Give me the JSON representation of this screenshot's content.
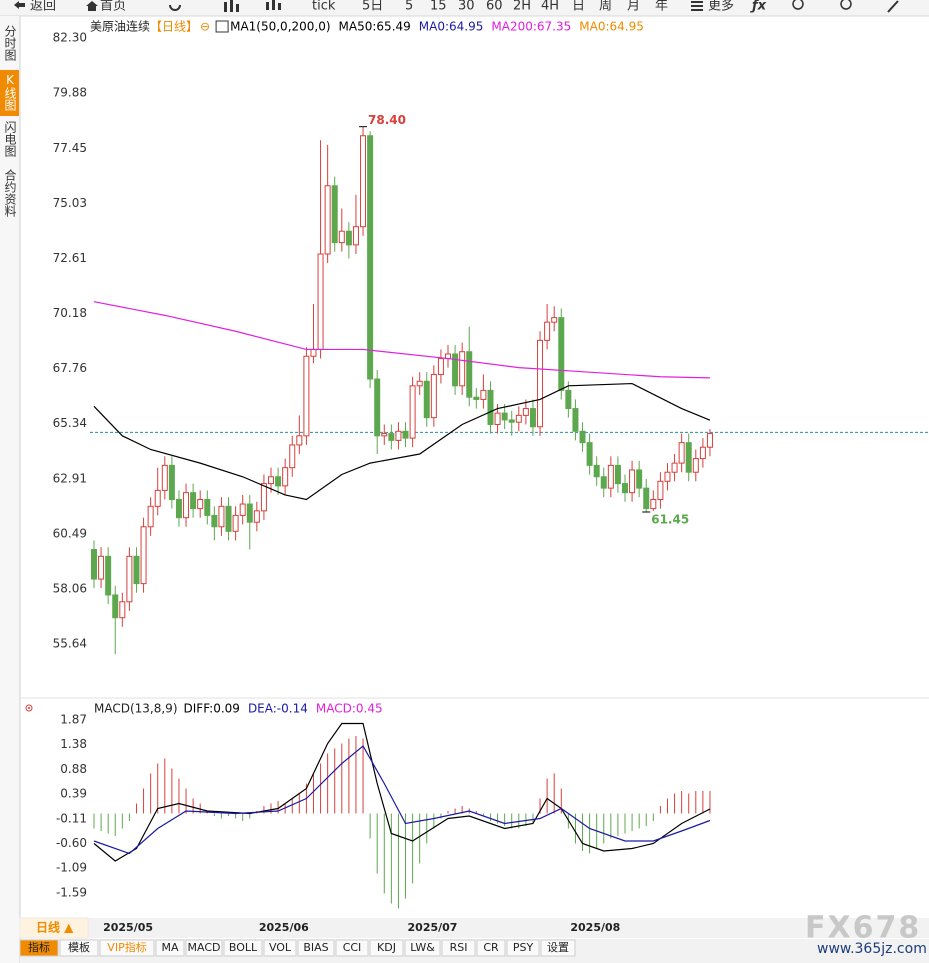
{
  "toolbar": [
    "返回",
    "首页",
    "tick",
    "5日",
    "5",
    "15",
    "30",
    "60",
    "2H",
    "4H",
    "日",
    "周",
    "月",
    "年",
    "更多"
  ],
  "sidebar": [
    "分时图",
    "K线图",
    "闪电图",
    "合约资料"
  ],
  "sidebar_active": 1,
  "period_button": "日线 ▲",
  "tabs": [
    "指标",
    "模板",
    "VIP指标",
    "MA",
    "MACD",
    "BOLL",
    "VOL",
    "BIAS",
    "CCI",
    "KDJ",
    "LW&",
    "RSI",
    "CR",
    "PSY",
    "设置"
  ],
  "tabs_active": 0,
  "watermark": {
    "brand": "FX678",
    "site": "www.365jz.com"
  },
  "chart_data": [
    {
      "type": "candlestick",
      "title": "美原油连续",
      "period": "【日线】",
      "period_icon": "⊖",
      "legend": [
        {
          "text": "MA1(50,0,200,0)",
          "color": "#000000"
        },
        {
          "text": "MA50:65.49",
          "color": "#000000"
        },
        {
          "text": "MA0:64.95",
          "color": "#1a1aa6"
        },
        {
          "text": "MA200:67.35",
          "color": "#e020e0"
        },
        {
          "text": "MA0:64.95",
          "color": "#f08a00"
        }
      ],
      "ylim": [
        53.62,
        82.74
      ],
      "yticks": [
        {
          "value": 82.3,
          "label": "82.30"
        },
        79.88,
        77.45,
        75.03,
        72.61,
        70.18,
        67.76,
        65.34,
        62.91,
        60.49,
        58.06,
        55.64
      ],
      "up_color": "#d7403c",
      "down_color": "#5da84f",
      "open": [
        59.8,
        58.5,
        59.5,
        57.8,
        56.8,
        57.5,
        59.5,
        58.3,
        60.8,
        61.7,
        62.4,
        63.5,
        62.0,
        61.2,
        62.3,
        61.6,
        62.0,
        61.3,
        60.8,
        61.7,
        60.6,
        61.3,
        61.8,
        61.0,
        61.5,
        62.7,
        63.0,
        62.6,
        63.4,
        64.4,
        64.8,
        68.3,
        68.6,
        72.8,
        75.8,
        73.3,
        73.8,
        73.2,
        74.0,
        78.0,
        67.3,
        64.8,
        64.9,
        64.6,
        65.0,
        64.7,
        67.0,
        67.2,
        65.6,
        67.5,
        68.2,
        68.4,
        67.0,
        68.5,
        66.5,
        66.4,
        66.8,
        65.3,
        65.8,
        65.5,
        65.4,
        65.7,
        66.0,
        65.2,
        69.0,
        69.8,
        70.0,
        66.8,
        66.0,
        65.0,
        64.5,
        63.5,
        63.0,
        62.5,
        63.5,
        62.7,
        62.3,
        63.3,
        62.5,
        61.6,
        62.0,
        62.8,
        63.2,
        63.6,
        64.5,
        63.2,
        63.8,
        64.3
      ],
      "high": [
        60.2,
        59.9,
        59.9,
        58.2,
        57.9,
        59.9,
        59.9,
        61.2,
        62.1,
        63.4,
        63.9,
        63.9,
        62.4,
        62.7,
        62.7,
        62.4,
        62.4,
        61.7,
        62.1,
        62.1,
        61.7,
        62.2,
        62.2,
        61.9,
        63.1,
        63.4,
        63.4,
        63.8,
        64.8,
        65.7,
        68.7,
        70.6,
        77.8,
        77.6,
        76.2,
        74.8,
        74.2,
        75.4,
        78.4,
        78.2,
        67.7,
        65.3,
        65.3,
        65.4,
        65.4,
        67.4,
        67.6,
        67.6,
        67.9,
        68.6,
        68.8,
        68.8,
        68.9,
        69.6,
        66.9,
        67.5,
        67.2,
        66.2,
        66.2,
        65.9,
        66.1,
        66.4,
        66.4,
        69.4,
        70.6,
        70.5,
        70.4,
        67.2,
        66.4,
        65.4,
        64.9,
        63.9,
        63.4,
        63.9,
        63.9,
        63.1,
        63.7,
        63.7,
        62.9,
        62.4,
        63.2,
        63.6,
        64.0,
        64.9,
        64.9,
        64.2,
        64.7,
        65.1
      ],
      "low": [
        58.1,
        58.1,
        57.4,
        55.2,
        56.4,
        57.1,
        57.9,
        57.9,
        60.4,
        61.3,
        62.0,
        61.6,
        60.8,
        60.8,
        61.2,
        61.2,
        60.9,
        60.2,
        60.4,
        60.2,
        60.2,
        60.9,
        59.8,
        60.6,
        61.1,
        62.3,
        62.2,
        62.2,
        63.0,
        64.0,
        64.4,
        68.0,
        68.2,
        72.4,
        72.9,
        72.9,
        72.6,
        72.8,
        73.6,
        66.9,
        64.0,
        64.4,
        64.2,
        64.2,
        64.3,
        64.3,
        66.6,
        65.2,
        65.2,
        67.1,
        67.8,
        66.6,
        66.6,
        66.1,
        66.0,
        66.0,
        64.9,
        64.9,
        65.1,
        64.8,
        65.0,
        65.3,
        64.8,
        64.8,
        68.6,
        69.4,
        66.4,
        65.6,
        64.6,
        64.1,
        63.1,
        62.6,
        62.1,
        62.1,
        62.3,
        61.9,
        61.9,
        62.1,
        61.45,
        61.5,
        61.6,
        62.4,
        62.8,
        63.2,
        62.8,
        62.8,
        63.4,
        63.9
      ],
      "close": [
        58.5,
        59.5,
        57.8,
        56.8,
        57.5,
        59.5,
        58.3,
        60.8,
        61.7,
        62.4,
        63.5,
        62.0,
        61.2,
        62.3,
        61.6,
        62.0,
        61.3,
        60.8,
        61.7,
        60.6,
        61.3,
        61.8,
        61.0,
        61.5,
        62.7,
        63.0,
        62.6,
        63.4,
        64.4,
        64.8,
        68.3,
        68.6,
        72.8,
        75.8,
        73.3,
        73.8,
        73.2,
        74.0,
        78.0,
        67.3,
        64.8,
        64.9,
        64.6,
        65.0,
        64.7,
        67.0,
        67.2,
        65.6,
        67.5,
        68.2,
        68.4,
        67.0,
        68.5,
        66.5,
        66.4,
        66.8,
        65.3,
        65.8,
        65.5,
        65.4,
        65.7,
        66.0,
        65.2,
        69.0,
        69.8,
        70.0,
        66.8,
        66.0,
        65.0,
        64.5,
        63.5,
        63.0,
        62.5,
        63.5,
        62.7,
        62.3,
        63.3,
        62.5,
        61.6,
        62.0,
        62.8,
        63.2,
        63.6,
        64.5,
        63.2,
        63.8,
        64.3,
        64.9
      ],
      "lines": [
        {
          "color": "#000000",
          "idx": [
            0,
            4,
            8,
            15,
            21,
            27,
            30,
            35,
            39,
            46,
            52,
            57,
            63,
            67,
            76,
            83,
            87
          ],
          "values": [
            66.1,
            64.8,
            64.2,
            63.6,
            63.0,
            62.2,
            62.0,
            63.1,
            63.6,
            64.0,
            65.3,
            66.0,
            66.4,
            67.0,
            67.1,
            66.0,
            65.49
          ]
        },
        {
          "color": "#e020e0",
          "idx": [
            0,
            10,
            20,
            30,
            38,
            50,
            60,
            70,
            80,
            87
          ],
          "values": [
            70.7,
            70.1,
            69.4,
            68.6,
            68.6,
            68.2,
            67.8,
            67.6,
            67.4,
            67.35
          ]
        }
      ],
      "current": 64.95,
      "current_color": "#2a8f9a",
      "annotations": [
        {
          "label": "78.40",
          "index": 38,
          "value": 78.4,
          "color": "#d7403c"
        },
        {
          "label": "61.45",
          "index": 78,
          "value": 61.45,
          "color": "#5da84f"
        }
      ],
      "x_labels": [
        {
          "index": 1,
          "label": "2025/05"
        },
        {
          "index": 23,
          "label": "2025/06"
        },
        {
          "index": 44,
          "label": "2025/07"
        },
        {
          "index": 67,
          "label": "2025/08"
        }
      ]
    },
    {
      "type": "macd",
      "title": "MACD(13,8,9)",
      "legend": [
        {
          "text": "DIFF:0.09",
          "color": "#000000"
        },
        {
          "text": "DEA:-0.14",
          "color": "#1a1aa6"
        },
        {
          "text": "MACD:0.45",
          "color": "#e020e0"
        }
      ],
      "ylim": [
        -2.03,
        2.27
      ],
      "yticks": [
        1.87,
        1.38,
        0.88,
        0.39,
        -0.11,
        {
          "value": -0.6,
          "label": "-0.60"
        },
        -1.09,
        -1.59
      ],
      "histogram": [
        -0.3,
        -0.35,
        -0.4,
        -0.45,
        -0.3,
        -0.15,
        0.2,
        0.5,
        0.8,
        1.0,
        1.1,
        0.9,
        0.7,
        0.5,
        0.3,
        0.2,
        0.05,
        -0.05,
        -0.1,
        -0.05,
        -0.1,
        -0.15,
        -0.1,
        0.05,
        0.15,
        0.2,
        0.25,
        0.2,
        0.3,
        0.4,
        0.6,
        0.8,
        1.0,
        1.2,
        1.3,
        1.4,
        1.5,
        1.55,
        1.5,
        -0.5,
        -1.2,
        -1.6,
        -1.8,
        -1.9,
        -1.7,
        -1.4,
        -1.0,
        -0.6,
        -0.3,
        -0.1,
        0.05,
        0.1,
        0.15,
        0.1,
        0.05,
        -0.05,
        -0.15,
        -0.2,
        -0.25,
        -0.3,
        -0.3,
        -0.25,
        -0.2,
        0.3,
        0.7,
        0.8,
        0.5,
        -0.3,
        -0.6,
        -0.75,
        -0.8,
        -0.7,
        -0.6,
        -0.5,
        -0.45,
        -0.4,
        -0.35,
        -0.3,
        -0.25,
        -0.15,
        0.15,
        0.3,
        0.4,
        0.45,
        0.4,
        0.45,
        0.45,
        0.45
      ],
      "up_color": "#d7403c",
      "down_color": "#5da84f",
      "lines": [
        {
          "color": "#000000",
          "idx": [
            0,
            3,
            6,
            9,
            12,
            16,
            22,
            26,
            30,
            33,
            35,
            38,
            40,
            42,
            45,
            50,
            53,
            58,
            62,
            64,
            66,
            69,
            72,
            76,
            79,
            83,
            87
          ],
          "values": [
            -0.6,
            -0.95,
            -0.7,
            0.1,
            0.2,
            0.05,
            0.0,
            0.1,
            0.5,
            1.4,
            1.8,
            1.8,
            0.6,
            -0.4,
            -0.55,
            -0.1,
            -0.05,
            -0.3,
            -0.2,
            0.3,
            0.1,
            -0.6,
            -0.75,
            -0.7,
            -0.6,
            -0.2,
            0.09
          ]
        },
        {
          "color": "#1a1aa6",
          "idx": [
            0,
            5,
            9,
            13,
            20,
            26,
            30,
            35,
            38,
            41,
            44,
            48,
            53,
            58,
            63,
            66,
            70,
            75,
            79,
            83,
            87
          ],
          "values": [
            -0.55,
            -0.8,
            -0.3,
            0.05,
            0.0,
            0.05,
            0.3,
            1.0,
            1.35,
            0.6,
            -0.2,
            -0.1,
            0.05,
            -0.2,
            -0.1,
            0.1,
            -0.3,
            -0.55,
            -0.55,
            -0.35,
            -0.14
          ]
        }
      ]
    }
  ]
}
